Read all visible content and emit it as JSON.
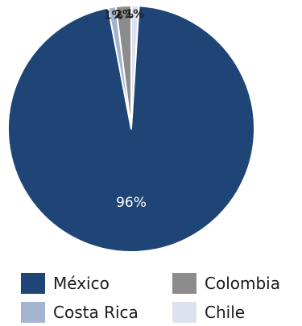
{
  "chart_data": {
    "type": "pie",
    "title": "",
    "categories": [
      "México",
      "Costa Rica",
      "Colombia",
      "Chile"
    ],
    "values": [
      96,
      1,
      2,
      1
    ],
    "labels": [
      "96%",
      "1%",
      "2%",
      "1%"
    ],
    "slice_order_clockwise_from_top": [
      "Chile",
      "México",
      "Costa Rica",
      "Colombia"
    ],
    "colors": {
      "México": "#1f4577",
      "Costa Rica": "#a3b4d1",
      "Colombia": "#8c8c8c",
      "Chile": "#dde3ee"
    },
    "legend_placement": "bottom",
    "legend": [
      {
        "label": "México",
        "color": "#1f4577"
      },
      {
        "label": "Colombia",
        "color": "#8c8c8c"
      },
      {
        "label": "Costa Rica",
        "color": "#a3b4d1"
      },
      {
        "label": "Chile",
        "color": "#dde3ee"
      }
    ]
  }
}
